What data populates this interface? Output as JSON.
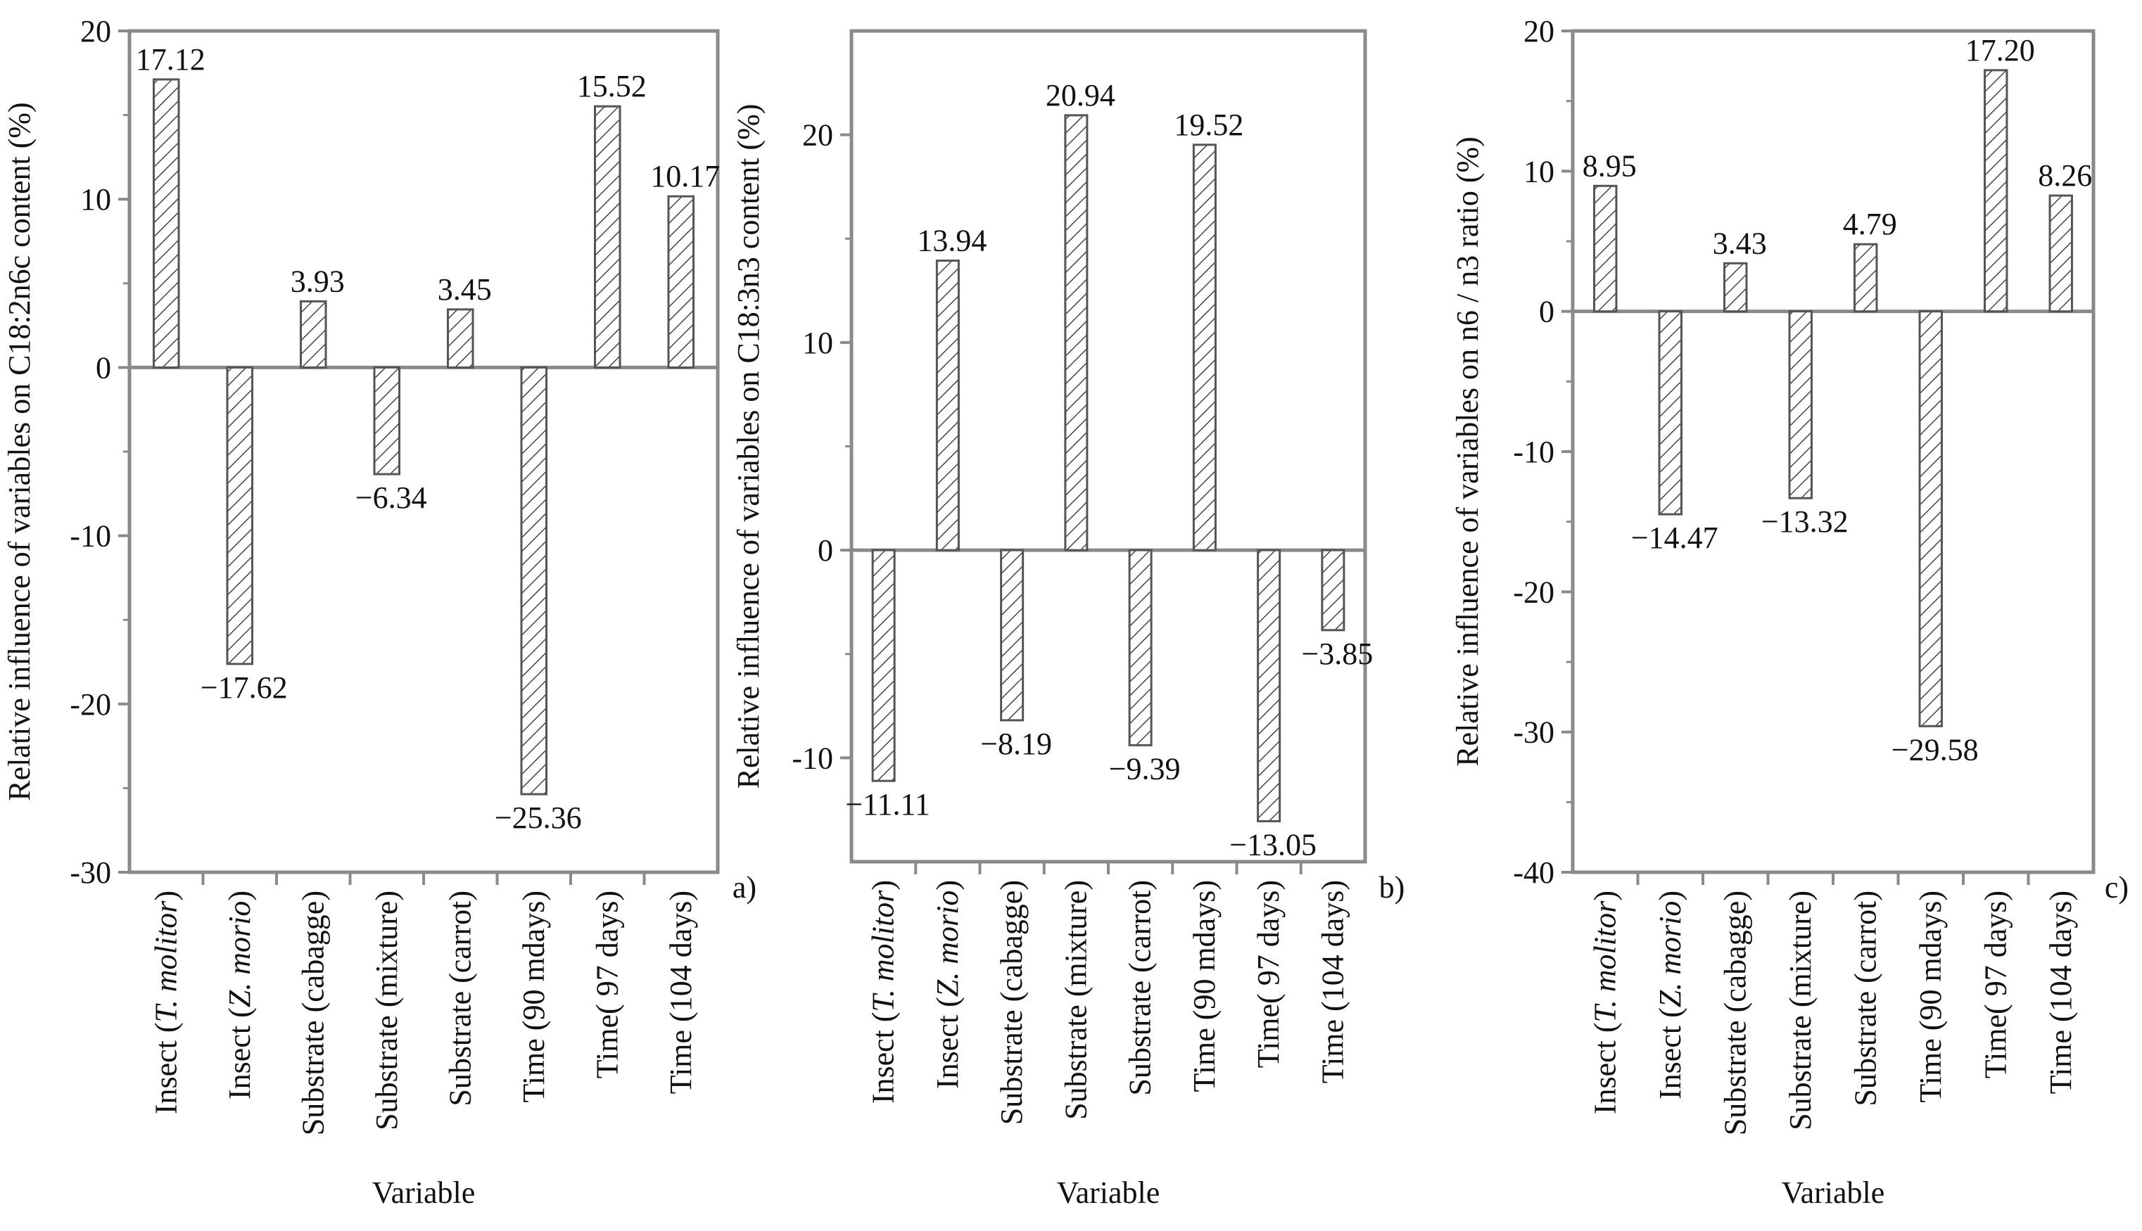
{
  "chart_data": [
    {
      "type": "bar",
      "panel_label": "a)",
      "ylabel": "Relative influence of variables on C18:2n6c content (%)",
      "xlabel": "Variable",
      "ylim": [
        -30,
        20
      ],
      "yticks": [
        20,
        10,
        0,
        -10,
        -20,
        -30
      ],
      "categories": [
        {
          "prefix": "Insect  (",
          "italic": "T. molitor",
          "suffix": ")"
        },
        {
          "prefix": "Insect (",
          "italic": "Z. morio",
          "suffix": ")"
        },
        {
          "prefix": "Substrate (cabagge)",
          "italic": "",
          "suffix": ""
        },
        {
          "prefix": "Substrate (mixture)",
          "italic": "",
          "suffix": ""
        },
        {
          "prefix": "Substrate (carrot)",
          "italic": "",
          "suffix": ""
        },
        {
          "prefix": "Time (90 mdays)",
          "italic": "",
          "suffix": ""
        },
        {
          "prefix": "Time( 97 days)",
          "italic": "",
          "suffix": ""
        },
        {
          "prefix": "Time (104 days)",
          "italic": "",
          "suffix": ""
        }
      ],
      "values": [
        17.12,
        -17.62,
        3.93,
        -6.34,
        3.45,
        -25.36,
        15.52,
        10.17
      ],
      "value_labels": [
        "17.12",
        "−17.62",
        "3.93",
        "−6.34",
        "3.45",
        "−25.36",
        "15.52",
        "10.17"
      ]
    },
    {
      "type": "bar",
      "panel_label": "b)",
      "ylabel": "Relative influence of variables on C18:3n3 content (%)",
      "xlabel": "Variable",
      "ylim": [
        -15,
        25
      ],
      "yticks": [
        20,
        10,
        0,
        -10
      ],
      "categories": [
        {
          "prefix": "Insect  (",
          "italic": "T. molitor",
          "suffix": ")"
        },
        {
          "prefix": "Insect (",
          "italic": "Z. morio",
          "suffix": ")"
        },
        {
          "prefix": "Substrate (cabagge)",
          "italic": "",
          "suffix": ""
        },
        {
          "prefix": "Substrate (mixture)",
          "italic": "",
          "suffix": ""
        },
        {
          "prefix": "Substrate (carrot)",
          "italic": "",
          "suffix": ""
        },
        {
          "prefix": "Time (90 mdays)",
          "italic": "",
          "suffix": ""
        },
        {
          "prefix": "Time( 97 days)",
          "italic": "",
          "suffix": ""
        },
        {
          "prefix": "Time (104 days)",
          "italic": "",
          "suffix": ""
        }
      ],
      "values": [
        -11.11,
        13.94,
        -8.19,
        20.94,
        -9.39,
        19.52,
        -13.05,
        -3.85
      ],
      "value_labels": [
        "−11.11",
        "13.94",
        "−8.19",
        "20.94",
        "−9.39",
        "19.52",
        "−13.05",
        "−3.85"
      ]
    },
    {
      "type": "bar",
      "panel_label": "c)",
      "ylabel": "Relative influence of variables on n6 / n3 ratio  (%)",
      "xlabel": "Variable",
      "ylim": [
        -40,
        20
      ],
      "yticks": [
        20,
        10,
        0,
        -10,
        -20,
        -30,
        -40
      ],
      "categories": [
        {
          "prefix": "Insect  (",
          "italic": "T. molitor",
          "suffix": ")"
        },
        {
          "prefix": "Insect (",
          "italic": "Z. morio",
          "suffix": ")"
        },
        {
          "prefix": "Substrate (cabagge)",
          "italic": "",
          "suffix": ""
        },
        {
          "prefix": "Substrate (mixture)",
          "italic": "",
          "suffix": ""
        },
        {
          "prefix": "Substrate (carrot)",
          "italic": "",
          "suffix": ""
        },
        {
          "prefix": "Time (90 mdays)",
          "italic": "",
          "suffix": ""
        },
        {
          "prefix": "Time( 97 days)",
          "italic": "",
          "suffix": ""
        },
        {
          "prefix": "Time (104 days)",
          "italic": "",
          "suffix": ""
        }
      ],
      "values": [
        8.95,
        -14.47,
        3.43,
        -13.32,
        4.79,
        -29.58,
        17.2,
        8.26
      ],
      "value_labels": [
        "8.95",
        "−14.47",
        "3.43",
        "−13.32",
        "4.79",
        "−29.58",
        "17.20",
        "8.26"
      ]
    }
  ],
  "colors": {
    "axis": "#8a8a8a",
    "bar_edge": "#555555",
    "hatch": "#444444",
    "text": "#111111"
  }
}
